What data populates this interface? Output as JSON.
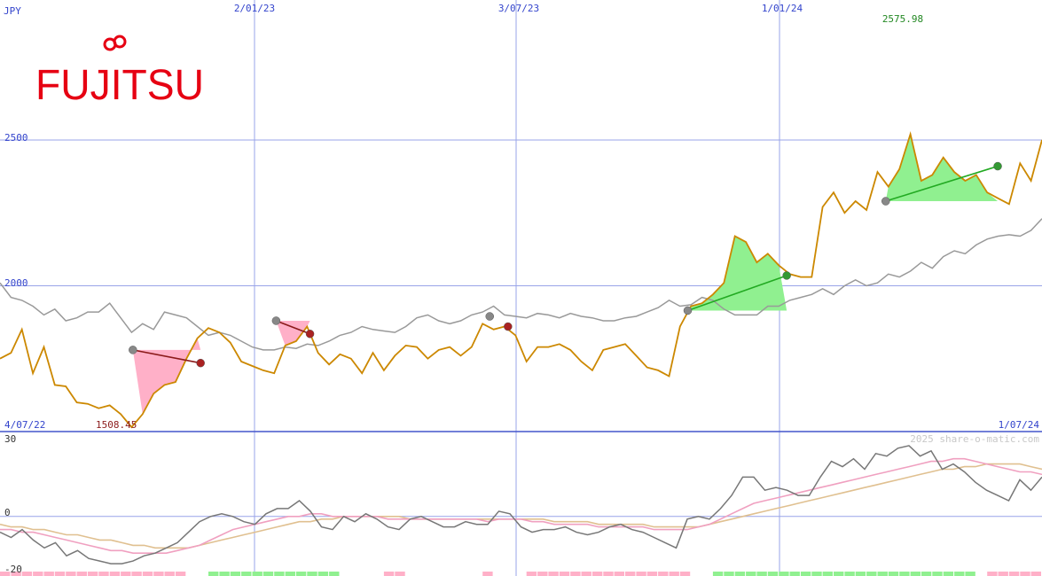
{
  "chart_data": [
    {
      "type": "line",
      "panel": "price",
      "currency_label": "JPY",
      "brand_logo": "FUJITSU",
      "colors": {
        "price_line": "#cc8800",
        "compare_line": "#999999",
        "gain_fill": "#90f090",
        "loss_fill": "#ffb0c8",
        "gain_trend": "#22aa22",
        "loss_trend": "#8b1a1a",
        "grid": "#4455cc"
      },
      "x_labels": [
        "2/01/23",
        "3/07/23",
        "1/01/24"
      ],
      "x_range_labels": {
        "start": "4/07/22",
        "end": "1/07/24"
      },
      "y_ticks": [
        2500,
        2000
      ],
      "ylim": [
        1500,
        2980
      ],
      "max_label": "2575.98",
      "min_label": "1508.45",
      "series": [
        {
          "values": [
            1750,
            1770,
            1850,
            1700,
            1790,
            1660,
            1655,
            1600,
            1595,
            1580,
            1590,
            1560,
            1515,
            1560,
            1630,
            1660,
            1670,
            1750,
            1820,
            1855,
            1840,
            1805,
            1740,
            1725,
            1710,
            1700,
            1795,
            1810,
            1860,
            1770,
            1730,
            1765,
            1750,
            1700,
            1770,
            1710,
            1760,
            1795,
            1790,
            1750,
            1780,
            1790,
            1760,
            1790,
            1870,
            1850,
            1860,
            1830,
            1740,
            1790,
            1790,
            1800,
            1780,
            1740,
            1710,
            1780,
            1790,
            1800,
            1760,
            1720,
            1710,
            1690,
            1860,
            1930,
            1940,
            1970,
            2010,
            2170,
            2150,
            2080,
            2110,
            2070,
            2040,
            2030,
            2030,
            2270,
            2320,
            2250,
            2290,
            2260,
            2390,
            2340,
            2400,
            2520,
            2360,
            2380,
            2440,
            2390,
            2360,
            2380,
            2320,
            2300,
            2280,
            2420,
            2360,
            2500
          ]
        },
        {
          "values": [
            2010,
            1960,
            1950,
            1930,
            1900,
            1920,
            1880,
            1890,
            1910,
            1910,
            1940,
            1890,
            1840,
            1870,
            1850,
            1910,
            1900,
            1890,
            1860,
            1830,
            1840,
            1830,
            1810,
            1790,
            1780,
            1780,
            1790,
            1785,
            1800,
            1795,
            1810,
            1830,
            1840,
            1860,
            1850,
            1845,
            1840,
            1860,
            1890,
            1900,
            1880,
            1870,
            1880,
            1900,
            1910,
            1930,
            1900,
            1895,
            1890,
            1905,
            1900,
            1890,
            1905,
            1895,
            1890,
            1880,
            1880,
            1890,
            1895,
            1910,
            1925,
            1950,
            1930,
            1935,
            1960,
            1950,
            1920,
            1900,
            1900,
            1900,
            1930,
            1930,
            1950,
            1960,
            1970,
            1990,
            1970,
            2000,
            2020,
            2000,
            2010,
            2040,
            2030,
            2050,
            2080,
            2060,
            2100,
            2120,
            2110,
            2140,
            2160,
            2170,
            2175,
            2170,
            2190,
            2230
          ]
        }
      ],
      "highlights": [
        {
          "kind": "loss",
          "from": [
            1755,
            1780
          ],
          "to": [
            1885,
            1735
          ]
        },
        {
          "kind": "loss",
          "from": [
            2030,
            1880
          ],
          "to": [
            2095,
            1835
          ]
        },
        {
          "kind": "gain",
          "from": [
            2820,
            1915
          ],
          "to": [
            3010,
            2035
          ]
        },
        {
          "kind": "gain",
          "from": [
            3200,
            2290
          ],
          "to": [
            3415,
            2410
          ]
        }
      ],
      "markers": [
        {
          "color": "grey",
          "x": 1755,
          "y": 1780
        },
        {
          "color": "red",
          "x": 1885,
          "y": 1735
        },
        {
          "color": "grey",
          "x": 2030,
          "y": 1880
        },
        {
          "color": "red",
          "x": 2095,
          "y": 1835
        },
        {
          "color": "grey",
          "x": 2440,
          "y": 1895
        },
        {
          "color": "red",
          "x": 2475,
          "y": 1860
        },
        {
          "color": "grey",
          "x": 2820,
          "y": 1915
        },
        {
          "color": "green",
          "x": 3010,
          "y": 2035
        },
        {
          "color": "grey",
          "x": 3200,
          "y": 2290
        },
        {
          "color": "green",
          "x": 3415,
          "y": 2410
        }
      ]
    },
    {
      "type": "line",
      "panel": "oscillator",
      "y_ticks": [
        30,
        0,
        -20
      ],
      "ylim": [
        -20,
        30
      ],
      "watermark": "2025 share-o-matic.com",
      "colors": {
        "osc": "#777777",
        "ma_fast": "#f0a0c0",
        "ma_slow": "#e0c090",
        "hist_pos": "#90f090",
        "hist_neg": "#ffb0c8"
      },
      "series": [
        {
          "values": [
            -6,
            -8,
            -5,
            -9,
            -12,
            -10,
            -15,
            -13,
            -16,
            -17,
            -18,
            -18,
            -17,
            -15,
            -14,
            -12,
            -10,
            -6,
            -2,
            0,
            1,
            0,
            -2,
            -3,
            1,
            3,
            3,
            6,
            2,
            -4,
            -5,
            0,
            -2,
            1,
            -1,
            -4,
            -5,
            -1,
            0,
            -2,
            -4,
            -4,
            -2,
            -3,
            -3,
            2,
            1,
            -4,
            -6,
            -5,
            -5,
            -4,
            -6,
            -7,
            -6,
            -4,
            -3,
            -5,
            -6,
            -8,
            -10,
            -12,
            -1,
            0,
            -1,
            3,
            8,
            15,
            15,
            10,
            11,
            10,
            8,
            8,
            15,
            21,
            19,
            22,
            18,
            24,
            23,
            26,
            27,
            23,
            25,
            18,
            20,
            17,
            13,
            10,
            8,
            6,
            14,
            10,
            15
          ]
        },
        {
          "values": [
            -5,
            -5,
            -6,
            -6,
            -7,
            -8,
            -9,
            -10,
            -11,
            -12,
            -13,
            -13,
            -14,
            -14,
            -14,
            -14,
            -13,
            -12,
            -11,
            -9,
            -7,
            -5,
            -4,
            -3,
            -2,
            -1,
            0,
            0,
            1,
            1,
            0,
            0,
            0,
            0,
            0,
            -1,
            -1,
            -1,
            -1,
            -1,
            -1,
            -1,
            -1,
            -1,
            -2,
            -1,
            -1,
            -1,
            -2,
            -2,
            -3,
            -3,
            -3,
            -3,
            -4,
            -4,
            -4,
            -4,
            -4,
            -5,
            -5,
            -5,
            -5,
            -4,
            -3,
            -1,
            1,
            3,
            5,
            6,
            7,
            8,
            9,
            10,
            11,
            12,
            13,
            14,
            15,
            16,
            17,
            18,
            19,
            20,
            21,
            21,
            22,
            22,
            21,
            20,
            19,
            18,
            17,
            17,
            16
          ]
        },
        {
          "values": [
            -3,
            -4,
            -4,
            -5,
            -5,
            -6,
            -7,
            -7,
            -8,
            -9,
            -9,
            -10,
            -11,
            -11,
            -12,
            -12,
            -12,
            -12,
            -11,
            -10,
            -9,
            -8,
            -7,
            -6,
            -5,
            -4,
            -3,
            -2,
            -2,
            -1,
            -1,
            0,
            0,
            0,
            0,
            0,
            0,
            -1,
            -1,
            -1,
            -1,
            -1,
            -1,
            -1,
            -1,
            -1,
            -1,
            -1,
            -1,
            -1,
            -2,
            -2,
            -2,
            -2,
            -3,
            -3,
            -3,
            -3,
            -3,
            -4,
            -4,
            -4,
            -4,
            -4,
            -3,
            -2,
            -1,
            0,
            1,
            2,
            3,
            4,
            5,
            6,
            7,
            8,
            9,
            10,
            11,
            12,
            13,
            14,
            15,
            16,
            17,
            18,
            18,
            19,
            19,
            20,
            20,
            20,
            20,
            19,
            18
          ]
        }
      ]
    }
  ]
}
